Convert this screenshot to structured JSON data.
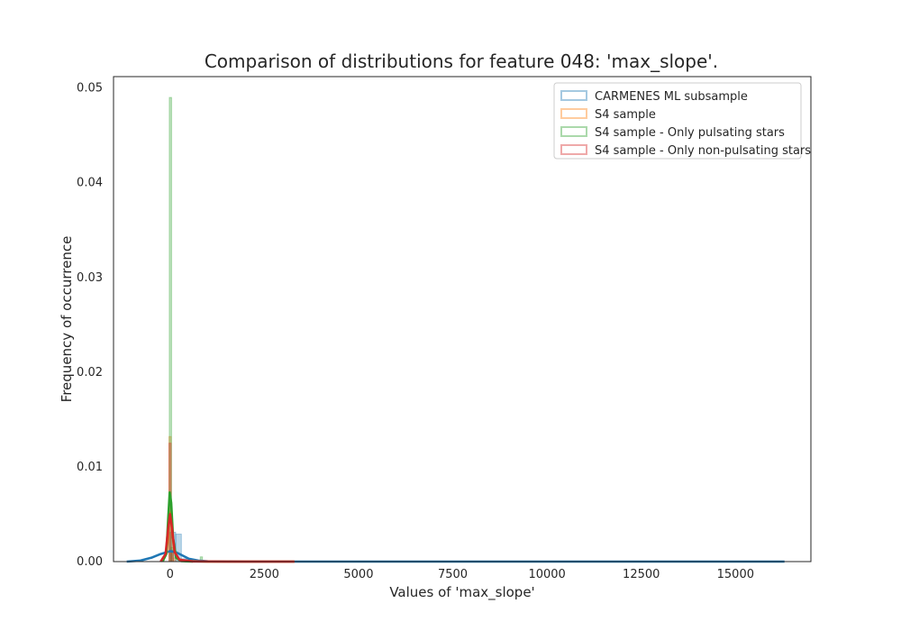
{
  "chart_data": {
    "type": "histogram-kde",
    "title": "Comparison of distributions for feature 048: 'max_slope'.",
    "xlabel": "Values of 'max_slope'",
    "ylabel": "Frequency of occurrence",
    "xlim": [
      -1500,
      17000
    ],
    "ylim": [
      0,
      0.0512
    ],
    "xticks": [
      0,
      2500,
      5000,
      7500,
      10000,
      12500,
      15000
    ],
    "xtick_labels": [
      "0",
      "2500",
      "5000",
      "7500",
      "10000",
      "12500",
      "15000"
    ],
    "yticks": [
      0,
      0.01,
      0.02,
      0.03,
      0.04,
      0.05
    ],
    "ytick_labels": [
      "0.00",
      "0.01",
      "0.02",
      "0.03",
      "0.04",
      "0.05"
    ],
    "grid": false,
    "legend_position": "upper-right",
    "series": [
      {
        "name": "CARMENES ML subsample",
        "color": "#1f77b4",
        "hist": [
          {
            "x0": 0,
            "x1": 150,
            "y": 0.0031
          },
          {
            "x0": 150,
            "x1": 300,
            "y": 0.0029
          },
          {
            "x0": 300,
            "x1": 450,
            "y": 0.0003
          },
          {
            "x0": 450,
            "x1": 600,
            "y": 0.0001
          }
        ],
        "kde": [
          [
            -1150,
            0.0
          ],
          [
            -800,
            0.0001
          ],
          [
            -500,
            0.0004
          ],
          [
            -250,
            0.0008
          ],
          [
            0,
            0.0011
          ],
          [
            150,
            0.001
          ],
          [
            300,
            0.0007
          ],
          [
            500,
            0.0003
          ],
          [
            750,
            0.0001
          ],
          [
            1000,
            3e-05
          ],
          [
            2000,
            0.0
          ],
          [
            5000,
            0.0
          ],
          [
            10000,
            0.0
          ],
          [
            16300,
            0.0
          ]
        ]
      },
      {
        "name": "S4 sample",
        "color": "#ff7f0e",
        "hist": [
          {
            "x0": -30,
            "x1": 30,
            "y": 0.0132
          },
          {
            "x0": 30,
            "x1": 90,
            "y": 0.0012
          },
          {
            "x0": 90,
            "x1": 150,
            "y": 0.0004
          }
        ],
        "kde": [
          [
            -200,
            0.0
          ],
          [
            -90,
            0.001
          ],
          [
            -40,
            0.0038
          ],
          [
            0,
            0.0052
          ],
          [
            40,
            0.004
          ],
          [
            100,
            0.0014
          ],
          [
            200,
            0.0003
          ],
          [
            400,
            5e-05
          ],
          [
            1000,
            0.0
          ],
          [
            3300,
            0.0
          ]
        ]
      },
      {
        "name": "S4 sample - Only pulsating stars",
        "color": "#2ca02c",
        "hist": [
          {
            "x0": -20,
            "x1": 20,
            "y": 0.049
          },
          {
            "x0": 20,
            "x1": 60,
            "y": 0.0015
          },
          {
            "x0": 800,
            "x1": 860,
            "y": 0.0005
          }
        ],
        "kde": [
          [
            -200,
            0.0
          ],
          [
            -100,
            0.0008
          ],
          [
            -50,
            0.0045
          ],
          [
            -10,
            0.0073
          ],
          [
            30,
            0.0062
          ],
          [
            80,
            0.0025
          ],
          [
            160,
            0.0004
          ],
          [
            300,
            5e-05
          ],
          [
            600,
            0.0
          ]
        ]
      },
      {
        "name": "S4 sample - Only non-pulsating stars",
        "color": "#d62728",
        "hist": [
          {
            "x0": -30,
            "x1": 30,
            "y": 0.0125
          },
          {
            "x0": 30,
            "x1": 90,
            "y": 0.001
          }
        ],
        "kde": [
          [
            -250,
            0.0
          ],
          [
            -120,
            0.0008
          ],
          [
            -50,
            0.0035
          ],
          [
            0,
            0.005
          ],
          [
            50,
            0.0036
          ],
          [
            120,
            0.001
          ],
          [
            250,
            0.0002
          ],
          [
            600,
            2e-05
          ],
          [
            1500,
            0.0
          ],
          [
            3300,
            0.0
          ]
        ]
      }
    ]
  }
}
